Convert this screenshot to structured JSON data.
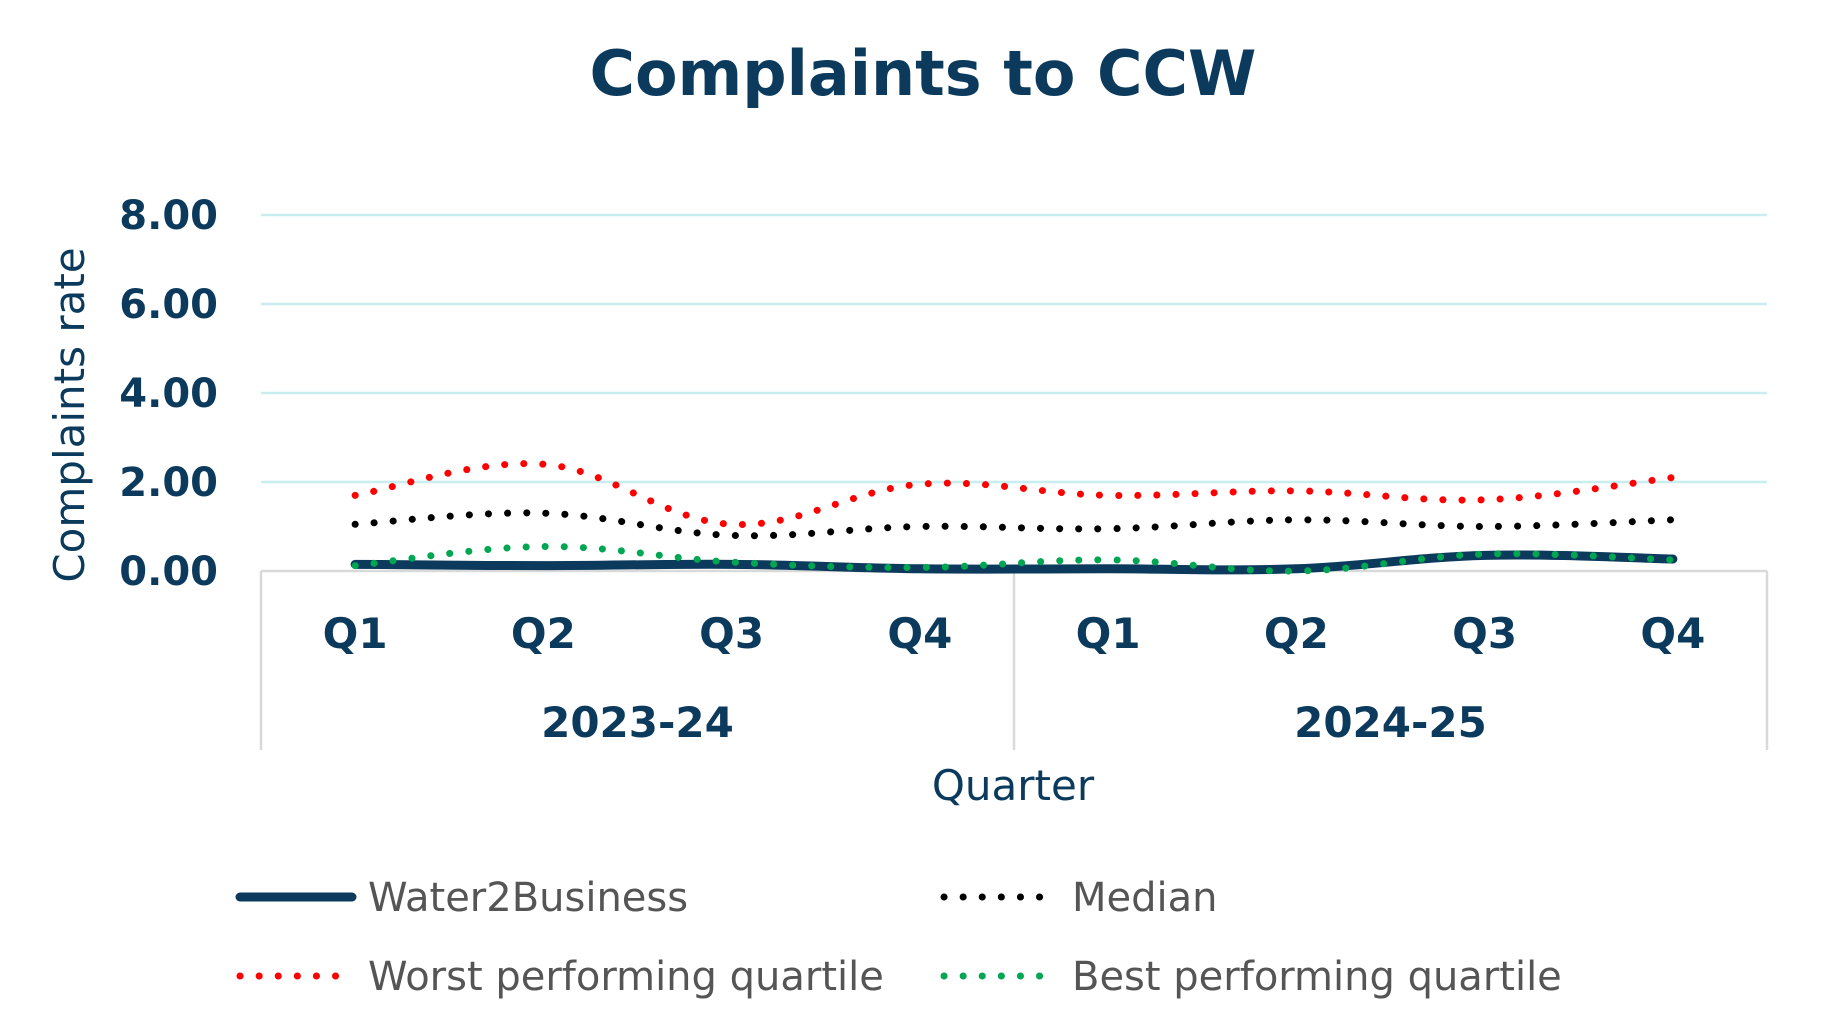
{
  "chart_data": {
    "type": "line",
    "title": "Complaints to CCW",
    "xlabel": "Quarter",
    "ylabel": "Complaints rate",
    "ylim": [
      0,
      8
    ],
    "yticks": [
      "0.00",
      "2.00",
      "4.00",
      "6.00",
      "8.00"
    ],
    "categories": [
      "Q1",
      "Q2",
      "Q3",
      "Q4",
      "Q1",
      "Q2",
      "Q3",
      "Q4"
    ],
    "groups": [
      {
        "label": "2023-24",
        "quarters": [
          "Q1",
          "Q2",
          "Q3",
          "Q4"
        ]
      },
      {
        "label": "2024-25",
        "quarters": [
          "Q1",
          "Q2",
          "Q3",
          "Q4"
        ]
      }
    ],
    "grid": true,
    "legend_position": "bottom",
    "series": [
      {
        "name": "Water2Business",
        "style": "solid",
        "color": "#0b3a5c",
        "values": [
          0.15,
          0.12,
          0.15,
          0.05,
          0.05,
          0.05,
          0.35,
          0.27
        ]
      },
      {
        "name": "Median",
        "style": "dotted",
        "color": "#000000",
        "values": [
          1.05,
          1.3,
          0.8,
          1.0,
          0.95,
          1.15,
          1.0,
          1.15
        ]
      },
      {
        "name": "Worst performing quartile",
        "style": "dotted",
        "color": "#ff0000",
        "values": [
          1.7,
          2.4,
          1.05,
          1.95,
          1.7,
          1.8,
          1.6,
          2.1
        ]
      },
      {
        "name": "Best performing quartile",
        "style": "dotted",
        "color": "#00a651",
        "values": [
          0.12,
          0.55,
          0.2,
          0.08,
          0.25,
          0.0,
          0.38,
          0.25
        ]
      }
    ]
  }
}
